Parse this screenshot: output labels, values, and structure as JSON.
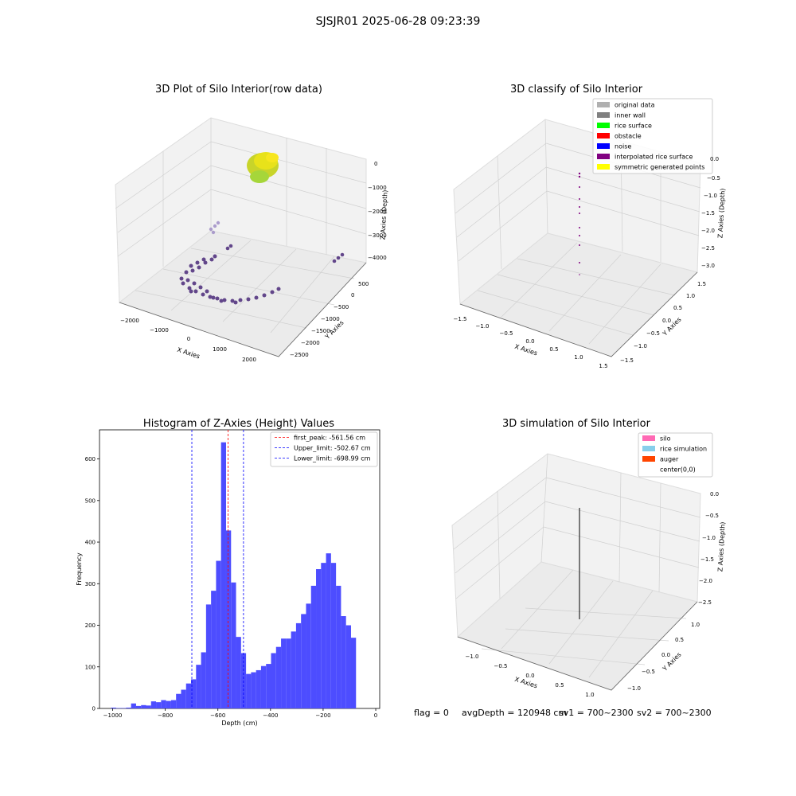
{
  "suptitle": "SJSJR01 2025-06-28 09:23:39",
  "colors": {
    "hist_fill": "#4d4dff",
    "first_peak_line": "#ff0000",
    "limit_line": "#0000ff",
    "point_dark": "#4b2a7a",
    "point_light": "#c8d42a"
  },
  "panels": {
    "raw3d": {
      "title": "3D Plot of Silo Interior(row data)",
      "xlabel": "X Axies",
      "ylabel": "Y Axies",
      "zlabel": "Z Axies (Depth)",
      "x_ticks": [
        "−2000",
        "−1000",
        "0",
        "1000",
        "2000"
      ],
      "y_ticks": [
        "500",
        "0",
        "−500",
        "−1000",
        "−1500",
        "−2000",
        "−2500"
      ],
      "z_ticks": [
        "0",
        "−1000",
        "−2000",
        "−3000",
        "−4000"
      ],
      "colormap": "viridis"
    },
    "classify3d": {
      "title": "3D classify of Silo Interior",
      "xlabel": "X Axies",
      "ylabel": "Y Axies",
      "zlabel": "Z Axies (Depth)",
      "x_ticks": [
        "−1.5",
        "−1.0",
        "−0.5",
        "0.0",
        "0.5",
        "1.0",
        "1.5"
      ],
      "y_ticks": [
        "1.5",
        "1.0",
        "0.5",
        "0.0",
        "−0.5",
        "−1.0",
        "−1.5"
      ],
      "z_ticks": [
        "0.0",
        "−0.5",
        "−1.0",
        "−1.5",
        "−2.0",
        "−2.5",
        "−3.0"
      ],
      "legend": [
        {
          "label": "original data",
          "color": "#b0b0b0"
        },
        {
          "label": "inner wall",
          "color": "#808080"
        },
        {
          "label": "rice surface",
          "color": "#00ff00"
        },
        {
          "label": "obstacle",
          "color": "#ff0000"
        },
        {
          "label": "noise",
          "color": "#0000ff"
        },
        {
          "label": "interpolated rice surface",
          "color": "#800080"
        },
        {
          "label": "symmetric generated points",
          "color": "#ffff00"
        }
      ]
    },
    "simulation3d": {
      "title": "3D simulation of Silo Interior",
      "xlabel": "X Axies",
      "ylabel": "Y Axies",
      "zlabel": "Z Axies (Depth)",
      "x_ticks": [
        "−1.0",
        "−0.5",
        "0.0",
        "0.5",
        "1.0"
      ],
      "y_ticks": [
        "1.0",
        "0.5",
        "0.0",
        "−0.5",
        "−1.0"
      ],
      "z_ticks": [
        "0.0",
        "−0.5",
        "−1.0",
        "−1.5",
        "−2.0",
        "−2.5"
      ],
      "legend": [
        {
          "label": "silo",
          "color": "#ff69b4"
        },
        {
          "label": "rice simulation",
          "color": "#87ceeb"
        },
        {
          "label": "auger",
          "color": "#ff4500"
        },
        {
          "label": "center(0,0)",
          "color": "none"
        }
      ]
    }
  },
  "chart_data": {
    "type": "bar",
    "title": "Histogram of Z-Axies (Height) Values",
    "xlabel": "Depth (cm)",
    "ylabel": "Frequency",
    "xlim": [
      -1050,
      15
    ],
    "ylim": [
      0,
      670
    ],
    "x_ticks": [
      -1000,
      -800,
      -600,
      -400,
      -200,
      0
    ],
    "y_ticks": [
      0,
      100,
      200,
      300,
      400,
      500,
      600
    ],
    "bin_width": 19,
    "bin_starts": [
      -1006,
      -987,
      -968,
      -949,
      -930,
      -911,
      -892,
      -873,
      -854,
      -835,
      -816,
      -797,
      -778,
      -759,
      -740,
      -721,
      -702,
      -683,
      -664,
      -645,
      -626,
      -607,
      -588,
      -569,
      -550,
      -531,
      -512,
      -493,
      -474,
      -455,
      -436,
      -417,
      -398,
      -379,
      -360,
      -341,
      -322,
      -303,
      -284,
      -265,
      -246,
      -227,
      -208,
      -189,
      -170,
      -151,
      -132,
      -113,
      -94,
      -75,
      -56
    ],
    "values": [
      2,
      1,
      1,
      2,
      12,
      6,
      8,
      7,
      17,
      15,
      20,
      18,
      20,
      35,
      45,
      60,
      70,
      105,
      135,
      250,
      283,
      355,
      640,
      428,
      303,
      172,
      133,
      83,
      87,
      92,
      102,
      107,
      133,
      148,
      168,
      168,
      185,
      205,
      227,
      252,
      295,
      335,
      350,
      373,
      350,
      295,
      222,
      200,
      170,
      0,
      0
    ],
    "lines": [
      {
        "label": "first_peak: -561.56 cm",
        "x": -561.56,
        "color": "#ff0000"
      },
      {
        "label": "Upper_limit: -502.67 cm",
        "x": -502.67,
        "color": "#0000ff"
      },
      {
        "label": "Lower_limit: -698.99 cm",
        "x": -698.99,
        "color": "#0000ff"
      }
    ]
  },
  "status": {
    "flag": "flag = 0",
    "avg_depth": "avgDepth = 120948 cm",
    "sv1": "sv1 = 700~2300",
    "sv2": "sv2 = 700~2300"
  }
}
